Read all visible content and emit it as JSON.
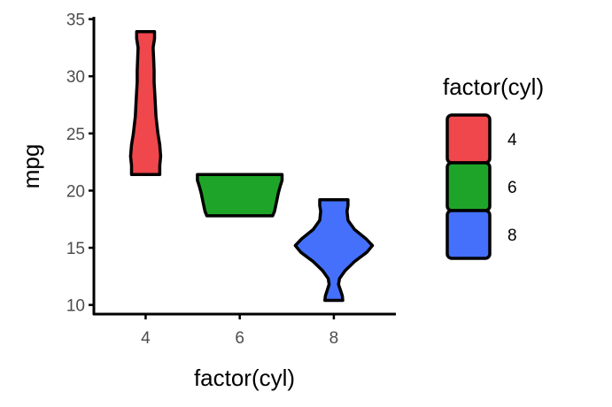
{
  "chart_data": {
    "type": "violin",
    "xlabel": "factor(cyl)",
    "ylabel": "mpg",
    "ylim": [
      9.2,
      35.2
    ],
    "yticks": [
      10,
      15,
      20,
      25,
      30,
      35
    ],
    "xlim": [
      2.9,
      9.3
    ],
    "grid": false,
    "legend": {
      "title": "factor(cyl)",
      "placement": "right",
      "entries": [
        {
          "label": "4",
          "color": "#ef474b"
        },
        {
          "label": "6",
          "color": "#1ea529"
        },
        {
          "label": "8",
          "color": "#4470fb"
        }
      ]
    },
    "series": [
      {
        "category": "4",
        "x": 4,
        "color": "#ef474b",
        "range": [
          21.4,
          33.9
        ],
        "profile": [
          [
            21.4,
            0.3
          ],
          [
            22.2,
            0.3
          ],
          [
            23.0,
            0.32
          ],
          [
            24.0,
            0.3
          ],
          [
            25.0,
            0.26
          ],
          [
            26.5,
            0.22
          ],
          [
            28.0,
            0.2
          ],
          [
            29.5,
            0.18
          ],
          [
            30.5,
            0.18
          ],
          [
            31.5,
            0.17
          ],
          [
            32.5,
            0.16
          ],
          [
            33.3,
            0.19
          ],
          [
            33.9,
            0.19
          ]
        ]
      },
      {
        "category": "6",
        "x": 6,
        "color": "#1ea529",
        "range": [
          17.8,
          21.4
        ],
        "profile": [
          [
            17.8,
            0.7
          ],
          [
            18.2,
            0.74
          ],
          [
            18.6,
            0.76
          ],
          [
            19.2,
            0.79
          ],
          [
            19.8,
            0.82
          ],
          [
            20.4,
            0.86
          ],
          [
            20.9,
            0.9
          ],
          [
            21.4,
            0.9
          ]
        ]
      },
      {
        "category": "8",
        "x": 8,
        "color": "#4470fb",
        "range": [
          10.4,
          19.2
        ],
        "profile": [
          [
            10.4,
            0.19
          ],
          [
            10.8,
            0.18
          ],
          [
            11.3,
            0.14
          ],
          [
            11.8,
            0.1
          ],
          [
            12.3,
            0.12
          ],
          [
            13.0,
            0.24
          ],
          [
            13.8,
            0.44
          ],
          [
            14.6,
            0.7
          ],
          [
            15.2,
            0.82
          ],
          [
            15.8,
            0.68
          ],
          [
            16.6,
            0.44
          ],
          [
            17.4,
            0.3
          ],
          [
            18.2,
            0.28
          ],
          [
            18.7,
            0.3
          ],
          [
            19.2,
            0.3
          ]
        ]
      }
    ]
  }
}
